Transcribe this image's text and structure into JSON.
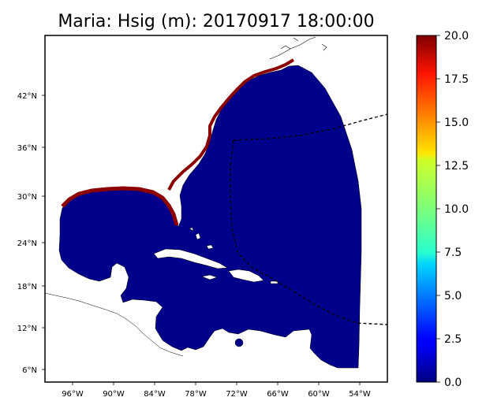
{
  "title": "Maria: Hsig (m): 20170917 18:00:00",
  "map": {
    "lon_ticks": [
      "96°W",
      "90°W",
      "84°W",
      "78°W",
      "72°W",
      "66°W",
      "60°W",
      "54°W"
    ],
    "lat_ticks": [
      "42°N",
      "36°N",
      "30°N",
      "24°N",
      "18°N",
      "12°N",
      "6°N"
    ],
    "colors": {
      "ocean_field": "#00008b",
      "coast_high": "#8b0000",
      "land": "#ffffff",
      "lines": "#000000"
    },
    "layers": [
      "wave-height-field",
      "coastal-high-wave-band",
      "coastlines",
      "domain-boundary-dashed"
    ]
  },
  "colorbar": {
    "ticks": [
      "20.0",
      "17.5",
      "15.0",
      "12.5",
      "10.0",
      "7.5",
      "5.0",
      "2.5",
      "0.0"
    ],
    "min": 0,
    "max": 20,
    "colormap": "jet"
  }
}
